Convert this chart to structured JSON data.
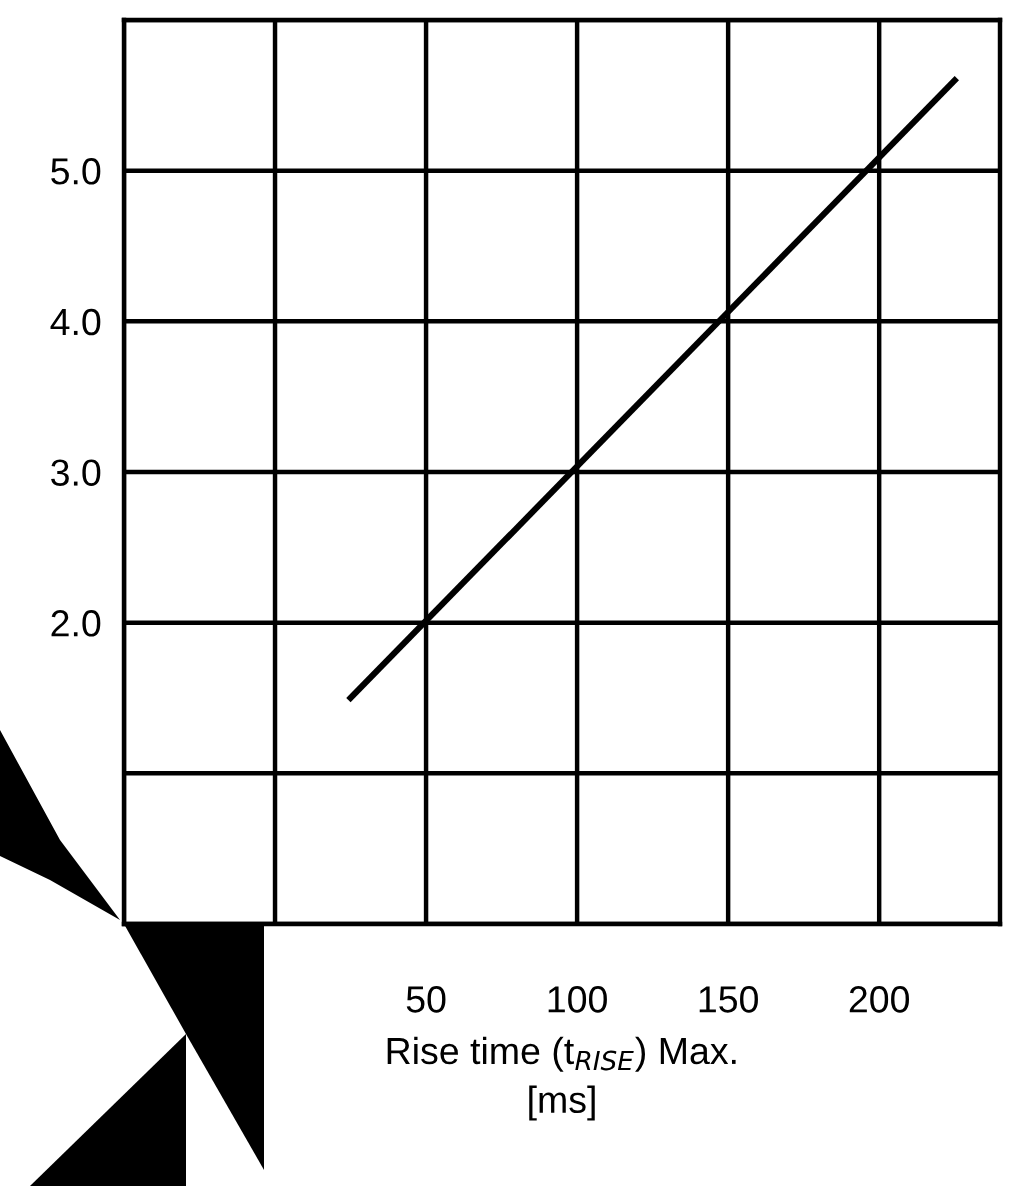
{
  "chart_data": {
    "type": "line",
    "xlabel": "Rise time (t$_{RISE}$) Max.\n[ms]",
    "x": [
      25,
      225
    ],
    "series": [
      {
        "color": "#000000",
        "values": [
          1.5,
          5.6
        ]
      }
    ],
    "xlim": [
      -50,
      240
    ],
    "ylim": [
      0,
      6
    ],
    "xticks": [
      {
        "value": -50,
        "label": null
      },
      {
        "value": 0,
        "label": null
      },
      50,
      100,
      150,
      200
    ],
    "yticks": [
      {
        "value": 0,
        "label": null
      },
      {
        "value": 1,
        "label": null
      },
      {
        "value": 2,
        "label": "2.0"
      },
      {
        "value": 3,
        "label": "3.0"
      },
      {
        "value": 4,
        "label": "4.0"
      },
      {
        "value": 5,
        "label": "5.0"
      },
      {
        "value": 6,
        "label": null
      }
    ],
    "grid": true,
    "legend": false,
    "marker": "none",
    "line_style": "solid"
  }
}
